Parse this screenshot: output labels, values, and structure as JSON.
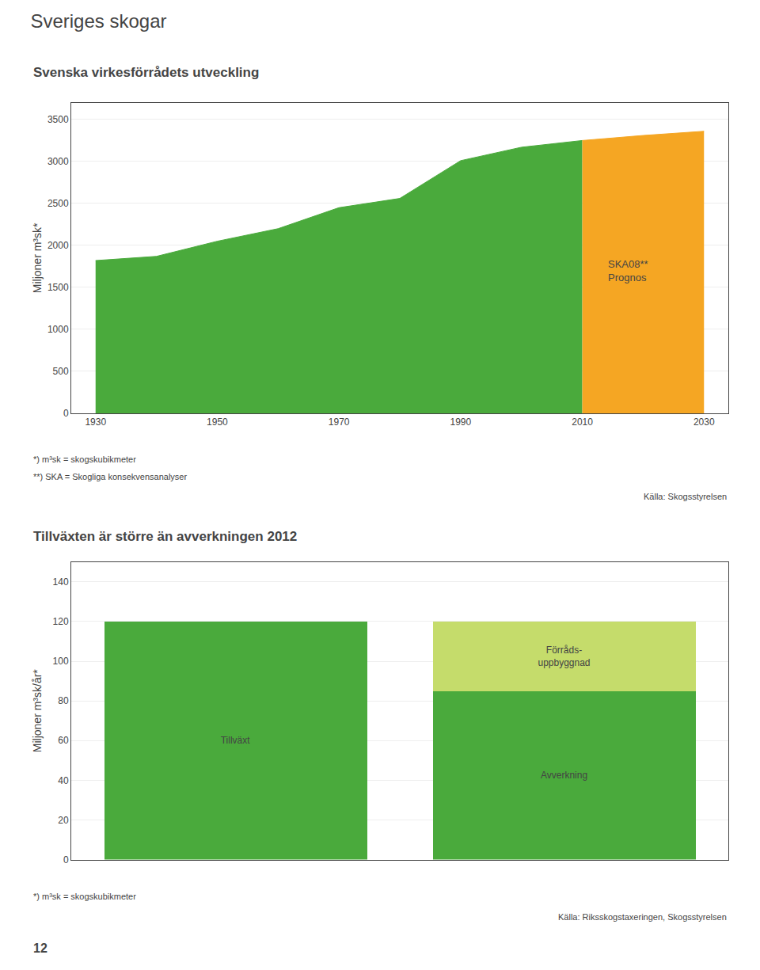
{
  "title": "Sveriges skogar",
  "page_number": "12",
  "chart_data": [
    {
      "type": "area",
      "title": "Svenska virkesförrådets utveckling",
      "ylabel": "Miljoner m³sk*",
      "series": [
        {
          "color": "#4aaa3c",
          "x": [
            1930,
            1940,
            1950,
            1960,
            1970,
            1980,
            1990,
            2000,
            2005,
            2010
          ],
          "values": [
            1820,
            1870,
            2050,
            2200,
            2450,
            2560,
            3010,
            3170,
            3210,
            3250
          ]
        },
        {
          "color": "#f5a623",
          "x": [
            2010,
            2020,
            2030
          ],
          "values": [
            3250,
            3310,
            3360
          ]
        }
      ],
      "xlim": [
        1926,
        2034
      ],
      "xticks": [
        1930,
        1950,
        1970,
        1990,
        2010,
        2030
      ],
      "ylim": [
        0,
        3700
      ],
      "yticks": [
        0,
        500,
        1000,
        1500,
        2000,
        2500,
        3000,
        3500
      ],
      "grid": "y",
      "annotations": [
        {
          "text": "SKA08**\nPrognos",
          "x": 2014,
          "y": 1700
        }
      ],
      "footnotes": [
        "*) m³sk = skogskubikmeter",
        "**) SKA = Skogliga konsekvensanalyser"
      ],
      "source": "Källa: Skogsstyrelsen"
    },
    {
      "type": "bar",
      "title": "Tillväxten är större än avverkningen 2012",
      "ylabel": "Miljoner m³sk/år*",
      "categories": [
        null,
        null
      ],
      "stacked": true,
      "series": [
        {
          "name": "Tillväxt",
          "color": "#4aaa3c",
          "values": [
            120,
            null
          ]
        },
        {
          "name": "Avverkning",
          "color": "#4aaa3c",
          "values": [
            null,
            85
          ]
        },
        {
          "name": "Förråds-\nuppbyggnad",
          "color": "#c5dc6b",
          "values": [
            null,
            35
          ]
        }
      ],
      "ylim": [
        0,
        150
      ],
      "yticks": [
        0,
        20,
        40,
        60,
        80,
        100,
        120,
        140
      ],
      "grid": "y",
      "tick_labels": "y",
      "footnotes": [
        "*) m³sk = skogskubikmeter"
      ],
      "source": "Källa: Riksskogstaxeringen, Skogsstyrelsen"
    }
  ]
}
